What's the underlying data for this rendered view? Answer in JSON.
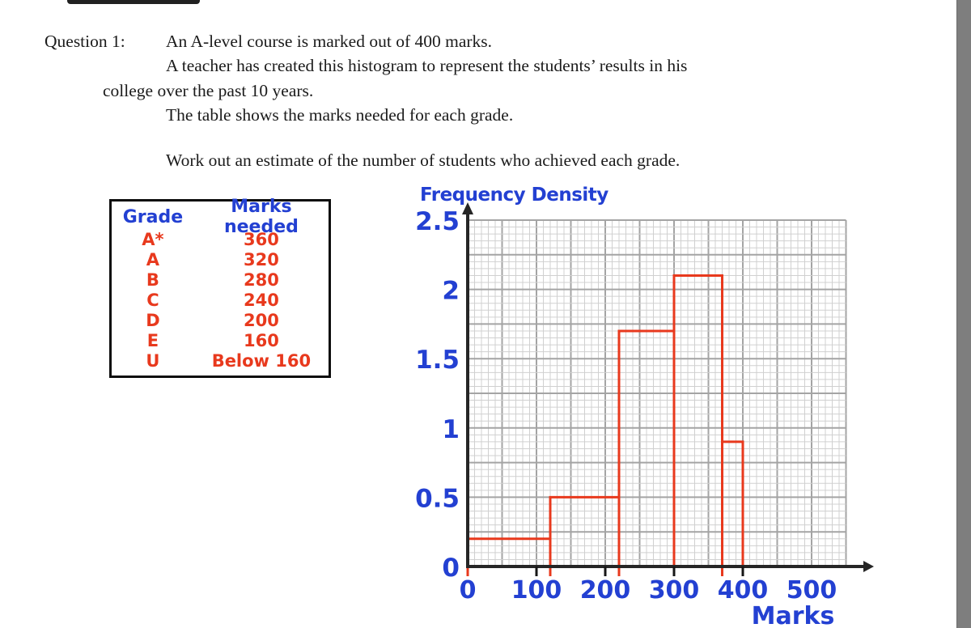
{
  "question": {
    "label": "Question 1:",
    "line1": "An A-level course is marked out of 400 marks.",
    "line2": "A teacher has created this histogram to represent the students’ results in his",
    "line3": "college over the past 10 years.",
    "line4": "The table shows the marks needed for each grade.",
    "prompt": "Work out an estimate of the number of students who achieved each grade."
  },
  "table": {
    "headers": [
      "Grade",
      "Marks needed"
    ],
    "rows": [
      {
        "grade": "A*",
        "marks": "360"
      },
      {
        "grade": "A",
        "marks": "320"
      },
      {
        "grade": "B",
        "marks": "280"
      },
      {
        "grade": "C",
        "marks": "240"
      },
      {
        "grade": "D",
        "marks": "200"
      },
      {
        "grade": "E",
        "marks": "160"
      },
      {
        "grade": "U",
        "marks": "Below 160"
      }
    ]
  },
  "chart_data": {
    "type": "histogram",
    "xlabel": "Marks",
    "ylabel": "Frequency Density",
    "xlim": [
      0,
      550
    ],
    "ylim": [
      0,
      2.5
    ],
    "x_tick_labels": [
      "0",
      "100",
      "200",
      "300",
      "400",
      "500"
    ],
    "x_axis_ticks": [
      100,
      200,
      300,
      400
    ],
    "y_tick_labels": [
      "0",
      "0.5",
      "1",
      "1.5",
      "2",
      "2.5"
    ],
    "grid": {
      "minor_x": 10,
      "major_x": 50,
      "minor_y": 0.05,
      "major_y": 0.25,
      "grid_on": true
    },
    "bins": [
      {
        "from": 0,
        "to": 120,
        "frequency_density": 0.2
      },
      {
        "from": 120,
        "to": 220,
        "frequency_density": 0.5
      },
      {
        "from": 220,
        "to": 300,
        "frequency_density": 1.7
      },
      {
        "from": 300,
        "to": 370,
        "frequency_density": 2.1
      },
      {
        "from": 370,
        "to": 400,
        "frequency_density": 0.9
      }
    ],
    "colors": {
      "bars": "#e8391d",
      "labels": "#2340d2",
      "grid_minor": "#d0d0d0",
      "grid_major": "#a4a4a4",
      "axis": "#262626"
    }
  }
}
